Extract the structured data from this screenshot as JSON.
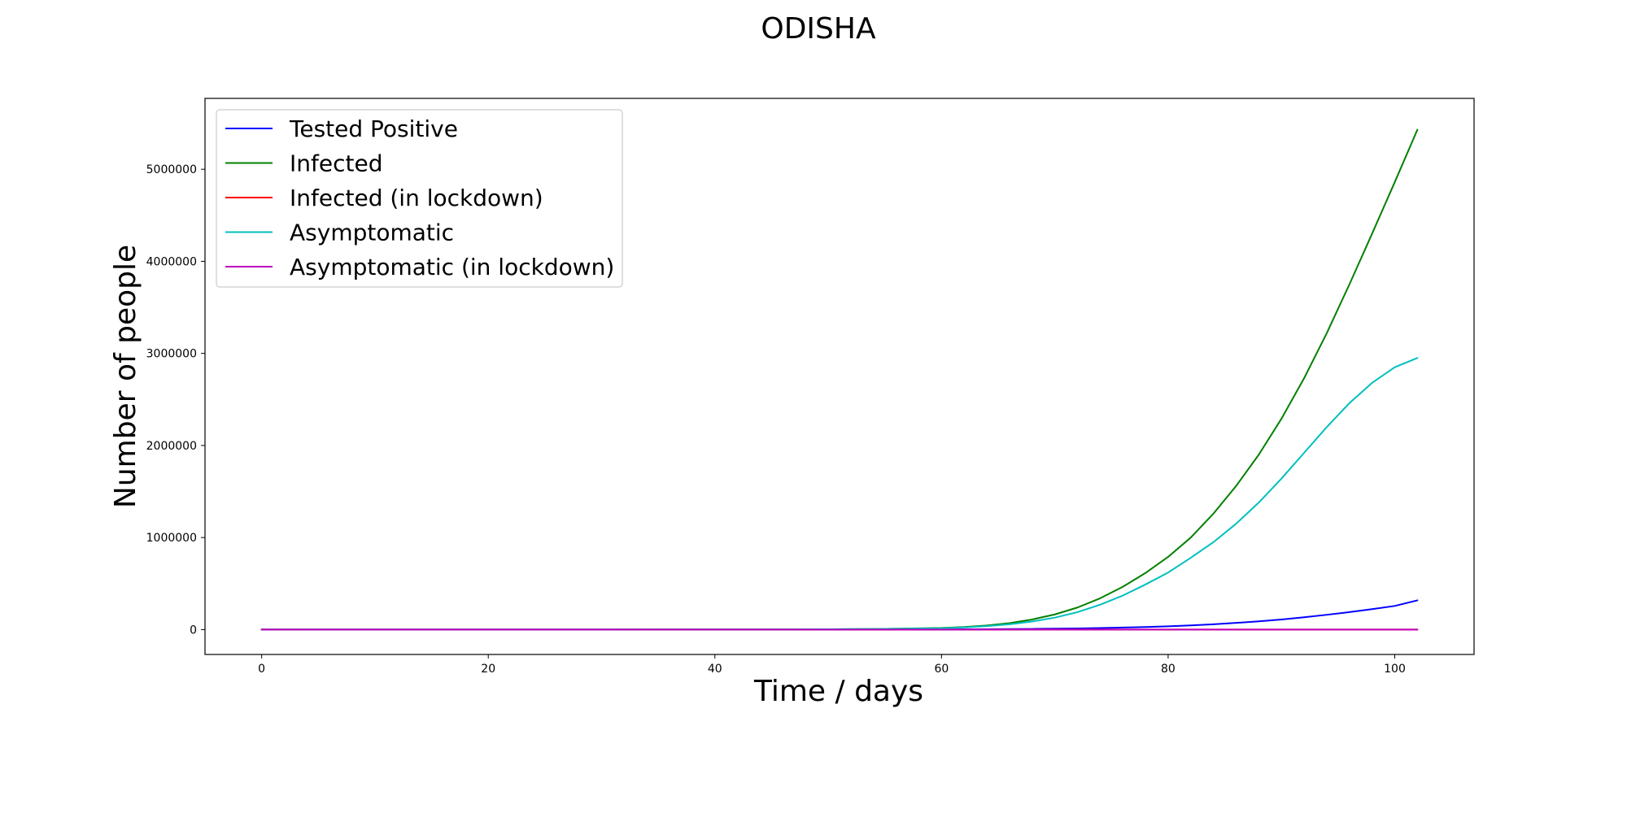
{
  "chart_data": {
    "type": "line",
    "title": "ODISHA",
    "xlabel": "Time / days",
    "ylabel": "Number of people",
    "xlim": [
      -5,
      107
    ],
    "ylim": [
      -270000,
      5770000
    ],
    "xticks": [
      0,
      20,
      40,
      60,
      80,
      100
    ],
    "yticks": [
      0,
      1000000,
      2000000,
      3000000,
      4000000,
      5000000
    ],
    "grid": false,
    "legend_position": "top-left",
    "x": [
      0,
      10,
      20,
      30,
      40,
      45,
      50,
      55,
      60,
      62,
      64,
      66,
      68,
      70,
      72,
      74,
      76,
      78,
      80,
      82,
      84,
      86,
      88,
      90,
      92,
      94,
      96,
      98,
      100,
      102
    ],
    "series": [
      {
        "name": "Tested Positive",
        "color": "#0000ff",
        "values": [
          0,
          0,
          0,
          0,
          100,
          200,
          500,
          1000,
          2000,
          3000,
          4000,
          5500,
          7500,
          10000,
          13000,
          17000,
          22000,
          28000,
          36000,
          46000,
          58000,
          73000,
          90000,
          110000,
          134000,
          161000,
          190000,
          222000,
          257000,
          318000
        ]
      },
      {
        "name": "Infected",
        "color": "#008000",
        "values": [
          0,
          0,
          0,
          0,
          1000,
          2000,
          4000,
          8000,
          18000,
          28000,
          45000,
          70000,
          110000,
          165000,
          240000,
          340000,
          465000,
          615000,
          790000,
          1000000,
          1260000,
          1560000,
          1900000,
          2290000,
          2730000,
          3220000,
          3750000,
          4300000,
          4860000,
          5430000
        ]
      },
      {
        "name": "Infected (in lockdown)",
        "color": "#ff0000",
        "values": [
          0,
          0,
          0,
          0,
          0,
          0,
          0,
          0,
          0,
          0,
          0,
          0,
          0,
          0,
          0,
          0,
          0,
          0,
          0,
          0,
          0,
          0,
          0,
          0,
          0,
          0,
          0,
          0,
          0,
          0
        ]
      },
      {
        "name": "Asymptomatic",
        "color": "#00bfbf",
        "values": [
          0,
          0,
          0,
          0,
          1000,
          2000,
          4000,
          8000,
          15000,
          24000,
          38000,
          58000,
          88000,
          130000,
          190000,
          270000,
          370000,
          490000,
          620000,
          780000,
          950000,
          1150000,
          1380000,
          1640000,
          1920000,
          2200000,
          2460000,
          2680000,
          2850000,
          2950000
        ]
      },
      {
        "name": "Asymptomatic (in lockdown)",
        "color": "#bf00bf",
        "values": [
          0,
          0,
          0,
          0,
          0,
          0,
          0,
          0,
          0,
          0,
          0,
          0,
          0,
          0,
          0,
          0,
          0,
          0,
          0,
          0,
          0,
          0,
          0,
          0,
          0,
          0,
          0,
          0,
          0,
          0
        ]
      }
    ]
  }
}
